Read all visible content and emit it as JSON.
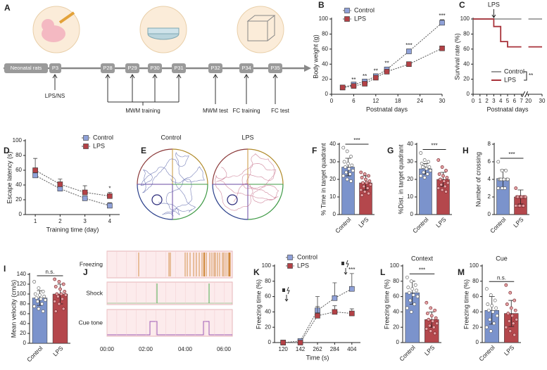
{
  "timeline": {
    "panel": "A",
    "labels": [
      "Neonatal rats",
      "P3",
      "P28",
      "P29",
      "P30",
      "P31",
      "P32",
      "P34",
      "P35"
    ],
    "events": [
      "LPS/NS",
      "MWM training",
      "MWM test",
      "FC training",
      "FC test"
    ]
  },
  "tracking": {
    "panel": "E",
    "labels": [
      "Control",
      "LPS"
    ]
  },
  "raster": {
    "panel": "J",
    "rows": [
      "Freezing",
      "Shock",
      "Cue tone"
    ],
    "xticks": [
      "00:00",
      "02:00",
      "04:00",
      "06:00"
    ]
  },
  "chart_data": [
    {
      "type": "line",
      "panel": "B",
      "ylabel": "Body weight (g)",
      "xlabel": "Postnatal days",
      "legend": "upper left",
      "line_style": "dotted",
      "x": [
        3,
        6,
        9,
        12,
        15,
        21,
        30
      ],
      "xlim": [
        0,
        30
      ],
      "xticks": [
        0,
        6,
        12,
        18,
        24,
        30
      ],
      "ylim": [
        0,
        100
      ],
      "yticks": [
        0,
        20,
        40,
        60,
        80,
        100
      ],
      "series": [
        {
          "name": "Control",
          "color": "#8fa1d8",
          "values": [
            9,
            13,
            17,
            24,
            33,
            57,
            95
          ],
          "errors": [
            1,
            1,
            2,
            2,
            3,
            3,
            4
          ]
        },
        {
          "name": "LPS",
          "color": "#b34146",
          "values": [
            9,
            11,
            14,
            22,
            30,
            40,
            61
          ],
          "errors": [
            1,
            1,
            2,
            2,
            2,
            3,
            3
          ]
        }
      ],
      "significance": [
        null,
        "**",
        "**",
        "**",
        "**",
        "***",
        "***"
      ]
    },
    {
      "type": "step",
      "panel": "C",
      "ylabel": "Survival rate (%)",
      "xlabel": "Postnatal days",
      "legend": "lower right",
      "line_style": "solid",
      "x": [
        0,
        3,
        4,
        5,
        7,
        20,
        30
      ],
      "xlim": [
        0,
        30
      ],
      "xbreak": [
        7,
        20
      ],
      "xticks": [
        0,
        1,
        2,
        3,
        4,
        5,
        6,
        7,
        20,
        30
      ],
      "ylim": [
        0,
        100
      ],
      "yticks": [
        0,
        20,
        40,
        60,
        80,
        100
      ],
      "series": [
        {
          "name": "Control",
          "color": "#9a9a9a",
          "values": [
            100,
            100,
            100,
            100,
            100,
            100,
            100
          ]
        },
        {
          "name": "LPS",
          "color": "#a8323a",
          "values": [
            100,
            90,
            70,
            63,
            63,
            63,
            63
          ]
        }
      ],
      "annotation": {
        "text": "LPS",
        "x": 3
      },
      "significance": "**"
    },
    {
      "type": "line",
      "panel": "D",
      "ylabel": "Escape latency (s)",
      "xlabel": "Training time (day)",
      "legend": "upper right",
      "line_style": "dotted",
      "x": [
        1,
        2,
        3,
        4
      ],
      "xlim": [
        0.6,
        4.4
      ],
      "xticks": [
        1,
        2,
        3,
        4
      ],
      "ylim": [
        0,
        100
      ],
      "yticks": [
        0,
        20,
        40,
        60,
        80,
        100
      ],
      "series": [
        {
          "name": "Control",
          "color": "#8fa1d8",
          "values": [
            53,
            35,
            22,
            12
          ],
          "errors": [
            7,
            6,
            3,
            4
          ]
        },
        {
          "name": "LPS",
          "color": "#b34146",
          "values": [
            60,
            41,
            30,
            25
          ],
          "errors": [
            16,
            7,
            9,
            5
          ]
        }
      ],
      "significance": [
        null,
        null,
        null,
        "*"
      ]
    },
    {
      "type": "bar",
      "panel": "F",
      "ylabel": "% Time in target quadrant",
      "categories": [
        "Control",
        "LPS"
      ],
      "values": [
        27,
        18
      ],
      "errors": [
        5,
        4
      ],
      "colors": [
        "#7b93cc",
        "#b4474c"
      ],
      "point_colors": [
        "#ffffff",
        "#e4a0a3"
      ],
      "ylim": [
        0,
        40
      ],
      "yticks": [
        0,
        10,
        20,
        30,
        40
      ],
      "significance": "***",
      "points": [
        [
          38,
          36,
          33,
          30,
          29,
          28,
          27,
          26,
          25,
          24,
          23,
          22,
          20,
          19
        ],
        [
          24,
          23,
          22,
          21,
          20,
          19,
          18,
          18,
          17,
          16,
          15,
          14,
          13,
          12,
          11
        ]
      ]
    },
    {
      "type": "bar",
      "panel": "G",
      "ylabel": "%Dist. in target quadrant",
      "categories": [
        "Control",
        "LPS"
      ],
      "values": [
        26,
        20
      ],
      "errors": [
        3,
        4
      ],
      "colors": [
        "#7b93cc",
        "#b4474c"
      ],
      "point_colors": [
        "#ffffff",
        "#e4a0a3"
      ],
      "ylim": [
        0,
        40
      ],
      "yticks": [
        0,
        10,
        20,
        30,
        40
      ],
      "significance": "***",
      "points": [
        [
          35,
          31,
          30,
          29,
          28,
          27,
          27,
          26,
          25,
          24,
          23,
          22,
          21
        ],
        [
          31,
          27,
          25,
          23,
          22,
          21,
          20,
          19,
          18,
          17,
          16,
          15,
          14,
          13
        ]
      ]
    },
    {
      "type": "bar",
      "panel": "H",
      "ylabel": "Number of crossing",
      "categories": [
        "Control",
        "LPS"
      ],
      "values": [
        4.1,
        2
      ],
      "errors": [
        1,
        0.8
      ],
      "colors": [
        "#7b93cc",
        "#b4474c"
      ],
      "point_colors": [
        "#ffffff",
        "#e4a0a3"
      ],
      "ylim": [
        0,
        8
      ],
      "yticks": [
        0,
        2,
        4,
        6,
        8
      ],
      "significance": "***",
      "points": [
        [
          6,
          5,
          5,
          4,
          4,
          4,
          4,
          4,
          4,
          4,
          3,
          3,
          3
        ],
        [
          3,
          2,
          2,
          2,
          2,
          2,
          2,
          2,
          2,
          1,
          1,
          1,
          1,
          1
        ]
      ]
    },
    {
      "type": "bar",
      "panel": "I",
      "ylabel": "Mean velocity (cm/s)",
      "categories": [
        "Control",
        "LPS"
      ],
      "values": [
        92,
        100
      ],
      "errors": [
        15,
        20
      ],
      "colors": [
        "#7b93cc",
        "#b4474c"
      ],
      "point_colors": [
        "#ffffff",
        "#e4a0a3"
      ],
      "ylim": [
        0,
        140
      ],
      "yticks": [
        0,
        20,
        40,
        60,
        80,
        100,
        120,
        140
      ],
      "significance": "n.s.",
      "points": [
        [
          125,
          112,
          105,
          100,
          98,
          95,
          92,
          90,
          88,
          85,
          80,
          75,
          70,
          65
        ],
        [
          130,
          125,
          120,
          115,
          110,
          105,
          100,
          100,
          98,
          95,
          90,
          85,
          80,
          70,
          65
        ]
      ]
    },
    {
      "type": "line",
      "panel": "K",
      "ylabel": "Freezing time (%)",
      "xlabel": "Time (s)",
      "legend": "upper left",
      "line_style": "dotted",
      "categories": [
        "120",
        "142",
        "262",
        "284",
        "404"
      ],
      "ylim": [
        0,
        100
      ],
      "yticks": [
        0,
        20,
        40,
        60,
        80,
        100
      ],
      "series": [
        {
          "name": "Control",
          "color": "#8fa1d8",
          "values": [
            0,
            2,
            42,
            58,
            70
          ],
          "errors": [
            0,
            3,
            18,
            20,
            20
          ]
        },
        {
          "name": "LPS",
          "color": "#b34146",
          "values": [
            0,
            0,
            35,
            40,
            38
          ],
          "errors": [
            0,
            1,
            12,
            8,
            6
          ]
        }
      ],
      "significance": [
        null,
        null,
        null,
        null,
        "***"
      ]
    },
    {
      "type": "bar",
      "panel": "L",
      "title": "Context",
      "ylabel": "Freezing time (%)",
      "categories": [
        "Control",
        "LPS"
      ],
      "values": [
        65,
        30
      ],
      "errors": [
        15,
        10
      ],
      "colors": [
        "#7b93cc",
        "#b4474c"
      ],
      "point_colors": [
        "#ffffff",
        "#e4a0a3"
      ],
      "ylim": [
        0,
        100
      ],
      "yticks": [
        0,
        20,
        40,
        60,
        80,
        100
      ],
      "significance": "***",
      "points": [
        [
          85,
          80,
          75,
          72,
          70,
          68,
          65,
          62,
          60,
          55,
          50,
          45,
          40
        ],
        [
          52,
          45,
          42,
          38,
          35,
          32,
          30,
          28,
          25,
          22,
          20,
          18,
          15,
          12
        ]
      ]
    },
    {
      "type": "bar",
      "panel": "M",
      "title": "Cue",
      "ylabel": "Freezing time (%)",
      "categories": [
        "Control",
        "LPS"
      ],
      "values": [
        42,
        38
      ],
      "errors": [
        18,
        17
      ],
      "colors": [
        "#7b93cc",
        "#b4474c"
      ],
      "point_colors": [
        "#ffffff",
        "#e4a0a3"
      ],
      "ylim": [
        0,
        100
      ],
      "yticks": [
        0,
        20,
        40,
        60,
        80,
        100
      ],
      "significance": "n.s.",
      "points": [
        [
          70,
          62,
          55,
          50,
          48,
          45,
          42,
          40,
          35,
          30,
          25,
          20,
          15
        ],
        [
          75,
          65,
          55,
          50,
          45,
          42,
          38,
          35,
          30,
          28,
          25,
          20,
          15,
          10
        ]
      ]
    }
  ]
}
